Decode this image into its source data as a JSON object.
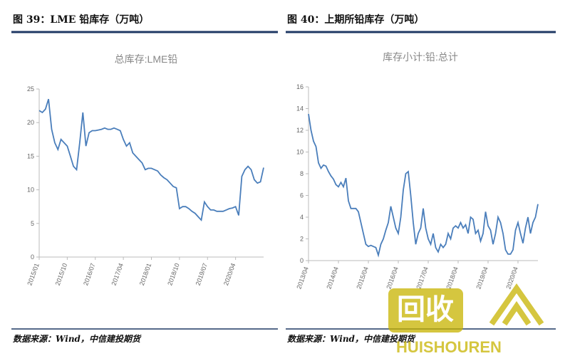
{
  "headers": [
    "图 39：LME 铅库存（万吨）",
    "图 40：上期所铅库存（万吨）"
  ],
  "sources": [
    "数据来源：Wind，中信建投期货",
    "数据来源：Wind，中信建投期货"
  ],
  "watermark": [
    "回收",
    "HUISHOUREN"
  ],
  "chart_data": [
    {
      "type": "line",
      "title": "总库存:LME铅",
      "color": "#4a7ebb",
      "x": [
        "2015/01",
        "2015/02",
        "2015/03",
        "2015/04",
        "2015/05",
        "2015/06",
        "2015/07",
        "2015/08",
        "2015/09",
        "2015/10",
        "2015/11",
        "2015/12",
        "2016/01",
        "2016/02",
        "2016/03",
        "2016/04",
        "2016/05",
        "2016/06",
        "2016/07",
        "2016/08",
        "2016/09",
        "2016/10",
        "2016/11",
        "2016/12",
        "2017/01",
        "2017/02",
        "2017/03",
        "2017/04",
        "2017/05",
        "2017/06",
        "2017/07",
        "2017/08",
        "2017/09",
        "2017/10",
        "2017/11",
        "2017/12",
        "2018/01",
        "2018/02",
        "2018/03",
        "2018/04",
        "2018/05",
        "2018/06",
        "2018/07",
        "2018/08",
        "2018/09",
        "2018/10",
        "2018/11",
        "2018/12",
        "2019/01",
        "2019/02",
        "2019/03",
        "2019/04",
        "2019/05",
        "2019/06",
        "2019/07",
        "2019/08",
        "2019/09",
        "2019/10",
        "2019/11",
        "2019/12",
        "2020/01",
        "2020/02",
        "2020/03",
        "2020/04",
        "2020/05",
        "2020/06",
        "2020/07",
        "2020/08",
        "2020/09",
        "2020/10",
        "2020/11",
        "2020/12",
        "2021/01"
      ],
      "values": [
        21.8,
        21.5,
        22,
        23.5,
        19,
        17,
        16,
        17.5,
        17,
        16.5,
        15,
        13.5,
        13,
        17,
        21.5,
        16.5,
        18.5,
        18.8,
        18.8,
        18.9,
        19,
        19.2,
        19,
        19,
        19.2,
        19,
        18.8,
        17.5,
        16.5,
        17,
        15.5,
        15,
        14.5,
        14,
        13,
        13.2,
        13.2,
        13,
        12.8,
        12.2,
        11.8,
        11.5,
        11,
        10.5,
        10.3,
        7.2,
        7.5,
        7.5,
        7.2,
        6.8,
        6.5,
        6,
        5.5,
        8.2,
        7.5,
        7,
        7,
        6.8,
        6.8,
        6.8,
        7,
        7.2,
        7.3,
        7.5,
        6.2,
        12,
        13,
        13.5,
        13,
        11.5,
        11,
        11.2,
        13.3
      ],
      "ylim": [
        0,
        25
      ],
      "yticks": [
        0,
        5,
        10,
        15,
        20,
        25
      ],
      "xticks": [
        "2015/01",
        "2015/10",
        "2016/07",
        "2017/04",
        "2018/01",
        "2018/10",
        "2019/07",
        "2020/04"
      ]
    },
    {
      "type": "line",
      "title": "库存小计:铅:总计",
      "color": "#4a7ebb",
      "x": [
        "2013/04",
        "2013/05",
        "2013/06",
        "2013/07",
        "2013/08",
        "2013/09",
        "2013/10",
        "2013/11",
        "2013/12",
        "2014/01",
        "2014/02",
        "2014/03",
        "2014/04",
        "2014/05",
        "2014/06",
        "2014/07",
        "2014/08",
        "2014/09",
        "2014/10",
        "2014/11",
        "2014/12",
        "2015/01",
        "2015/02",
        "2015/03",
        "2015/04",
        "2015/05",
        "2015/06",
        "2015/07",
        "2015/08",
        "2015/09",
        "2015/10",
        "2015/11",
        "2015/12",
        "2016/01",
        "2016/02",
        "2016/03",
        "2016/04",
        "2016/05",
        "2016/06",
        "2016/07",
        "2016/08",
        "2016/09",
        "2016/10",
        "2016/11",
        "2016/12",
        "2017/01",
        "2017/02",
        "2017/03",
        "2017/04",
        "2017/05",
        "2017/06",
        "2017/07",
        "2017/08",
        "2017/09",
        "2017/10",
        "2017/11",
        "2017/12",
        "2018/01",
        "2018/02",
        "2018/03",
        "2018/04",
        "2018/05",
        "2018/06",
        "2018/07",
        "2018/08",
        "2018/09",
        "2018/10",
        "2018/11",
        "2018/12",
        "2019/01",
        "2019/02",
        "2019/03",
        "2019/04",
        "2019/05",
        "2019/06",
        "2019/07",
        "2019/08",
        "2019/09",
        "2019/10",
        "2019/11",
        "2019/12",
        "2020/01",
        "2020/02",
        "2020/03",
        "2020/04",
        "2020/05",
        "2020/06",
        "2020/07",
        "2020/08",
        "2020/09",
        "2020/10",
        "2020/11",
        "2020/12"
      ],
      "values": [
        13.5,
        12,
        11,
        10.5,
        9,
        8.5,
        8.8,
        8.7,
        8.2,
        7.8,
        7.5,
        7,
        6.8,
        7.2,
        6.8,
        7.6,
        5.5,
        4.8,
        4.8,
        4.8,
        4.5,
        3.5,
        2.5,
        1.5,
        1.3,
        1.4,
        1.3,
        1.2,
        0.5,
        1.5,
        2,
        2.8,
        3.5,
        5,
        4,
        3,
        2.5,
        4,
        6.5,
        8,
        8.2,
        6,
        3.5,
        1.5,
        2.5,
        3,
        4.8,
        3,
        2,
        1.5,
        2.5,
        1.2,
        0.8,
        1.5,
        1.2,
        1.5,
        2.5,
        2,
        3,
        3.2,
        3,
        3.5,
        3,
        3.3,
        2.5,
        4,
        3.8,
        2.5,
        2.8,
        1.8,
        2.5,
        4.5,
        3.2,
        2.8,
        1.5,
        2.5,
        4,
        3.5,
        2.5,
        1,
        0.6,
        0.6,
        1,
        2.8,
        3.5,
        2.5,
        1.6,
        3,
        4,
        2.5,
        3.5,
        4,
        5.2
      ],
      "ylim": [
        0,
        16
      ],
      "yticks": [
        0,
        2,
        4,
        6,
        8,
        10,
        12,
        14,
        16
      ],
      "xticks": [
        "2013/04",
        "2014/04",
        "2015/04",
        "2016/04",
        "2017/04",
        "2018/04",
        "2019/04",
        "2020/04"
      ]
    }
  ]
}
